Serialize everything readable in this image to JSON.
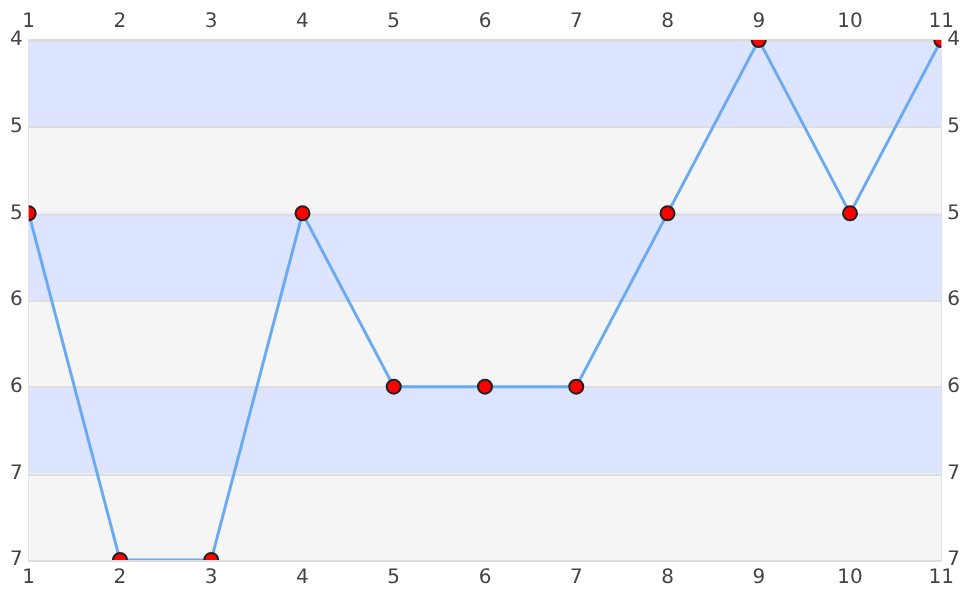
{
  "chart_data": {
    "type": "line",
    "x": [
      1,
      2,
      3,
      4,
      5,
      6,
      7,
      8,
      9,
      10,
      11
    ],
    "series": [
      {
        "color": "#6aaaf0",
        "colors": [
          "#ff0000",
          "#ff0000",
          "#ff0000",
          "#ff0000",
          "#ff0000",
          "#ff0000",
          "#ff0000",
          "#ff0000",
          "#ff0000",
          "#ff0000",
          "#ff0000"
        ],
        "values": [
          5,
          7,
          7,
          5,
          6,
          6,
          6,
          5,
          4,
          5,
          4
        ]
      }
    ],
    "xlim": [
      1,
      11
    ],
    "xticks": [
      1,
      2,
      3,
      4,
      5,
      6,
      7,
      8,
      9,
      10,
      11
    ],
    "x2lim": [
      1,
      11
    ],
    "x2ticks": [
      1,
      2,
      3,
      4,
      5,
      6,
      7,
      8,
      9,
      10,
      11
    ],
    "ylim": [
      7,
      4
    ],
    "yticks": [
      4,
      {
        "value": 4.5,
        "label": "5"
      },
      5,
      {
        "value": 5.5,
        "label": "6"
      },
      6,
      {
        "value": 6.5,
        "label": "7"
      },
      7
    ],
    "y2lim": [
      7,
      4
    ],
    "y2ticks": [
      4,
      {
        "value": 4.5,
        "label": "5"
      },
      5,
      {
        "value": 5.5,
        "label": "6"
      },
      6,
      {
        "value": 6.5,
        "label": "7"
      },
      7
    ],
    "bands": [
      {
        "axis": "y",
        "from": 4,
        "to": 4.5,
        "color": "#dde4ff"
      },
      {
        "axis": "y",
        "from": 5,
        "to": 5.5,
        "color": "#dde4ff"
      },
      {
        "axis": "y",
        "from": 6,
        "to": 6.5,
        "color": "#dde4ff"
      }
    ],
    "grid": "y",
    "marker": "circle",
    "line_style": "solid",
    "legend": false
  }
}
